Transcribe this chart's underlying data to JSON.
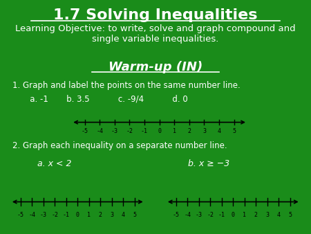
{
  "background_color": "#1a8c1a",
  "title": "1.7 Solving Inequalities",
  "title_color": "white",
  "title_fontsize": 16,
  "subtitle": "Learning Objective: to write, solve and graph compound and\nsingle variable inequalities.",
  "subtitle_fontsize": 9.5,
  "warmup_label": "Warm-up (IN)",
  "warmup_fontsize": 13,
  "problem1_line1": "1. Graph and label the points on the same number line.",
  "problem1_line2": "   a. -1       b. 3.5           c. -9/4           d. 0",
  "problem2_text": "2. Graph each inequality on a separate number line.",
  "ineq_a_label": "a. x < 2",
  "ineq_b_label": "b. x ≥ −3",
  "number_line_ticks": [
    -5,
    -4,
    -3,
    -2,
    -1,
    0,
    1,
    2,
    3,
    4,
    5
  ],
  "text_color": "white",
  "font_family": "Comic Sans MS"
}
